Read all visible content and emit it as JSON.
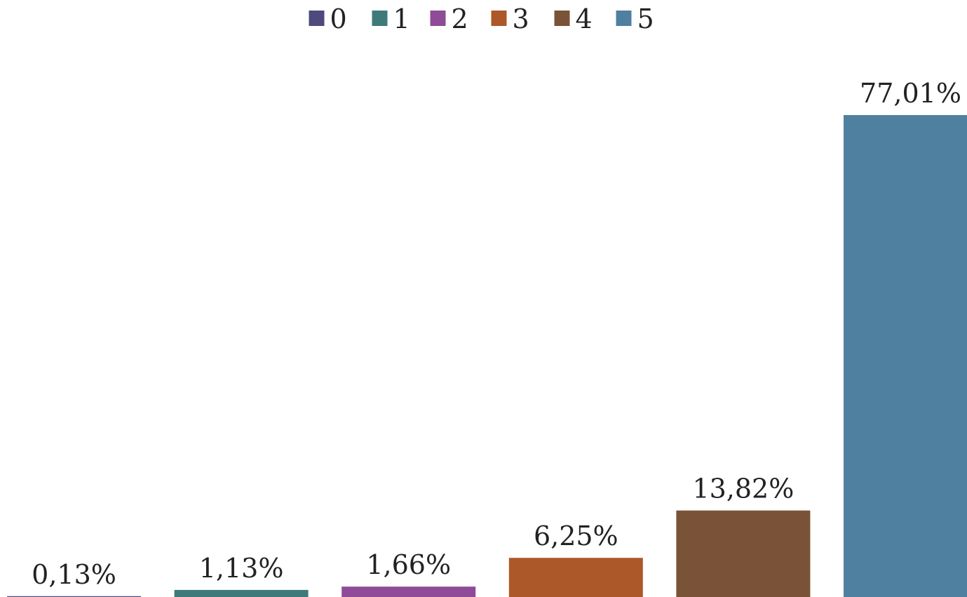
{
  "chart_data": {
    "type": "bar",
    "categories": [
      "0",
      "1",
      "2",
      "3",
      "4",
      "5"
    ],
    "values": [
      0.13,
      1.13,
      1.66,
      6.25,
      13.82,
      77.01
    ],
    "value_labels": [
      "0,13%",
      "1,13%",
      "1,66%",
      "6,25%",
      "13,82%",
      "77,01%"
    ],
    "colors": [
      "#4e4a7e",
      "#3e7a7a",
      "#8f4a98",
      "#ad5828",
      "#7a5238",
      "#5080a0"
    ],
    "legend": {
      "position": "top-center",
      "entries": [
        "0",
        "1",
        "2",
        "3",
        "4",
        "5"
      ]
    },
    "ylim": [
      0,
      77.01
    ],
    "unit": "%",
    "title": "",
    "xlabel": "",
    "ylabel": "",
    "grid": false,
    "axes_visible": false
  }
}
